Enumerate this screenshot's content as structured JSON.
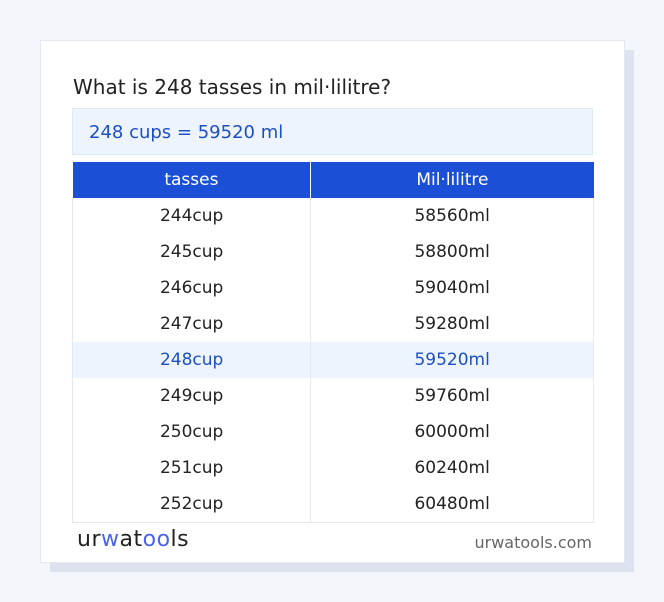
{
  "title": "What is 248 tasses in mil·lilitre?",
  "summary": "248 cups = 59520 ml",
  "table": {
    "headers": [
      "tasses",
      "Mil·lilitre"
    ],
    "rows": [
      [
        "244cup",
        "58560ml"
      ],
      [
        "245cup",
        "58800ml"
      ],
      [
        "246cup",
        "59040ml"
      ],
      [
        "247cup",
        "59280ml"
      ],
      [
        "248cup",
        "59520ml"
      ],
      [
        "249cup",
        "59760ml"
      ],
      [
        "250cup",
        "60000ml"
      ],
      [
        "251cup",
        "60240ml"
      ],
      [
        "252cup",
        "60480ml"
      ]
    ],
    "highlighted_row": 4
  },
  "footer": {
    "logo": "urwatools",
    "site": "urwatools.com"
  },
  "colors": {
    "accent": "#1a4fd6",
    "highlight_bg": "#edf4fd"
  }
}
